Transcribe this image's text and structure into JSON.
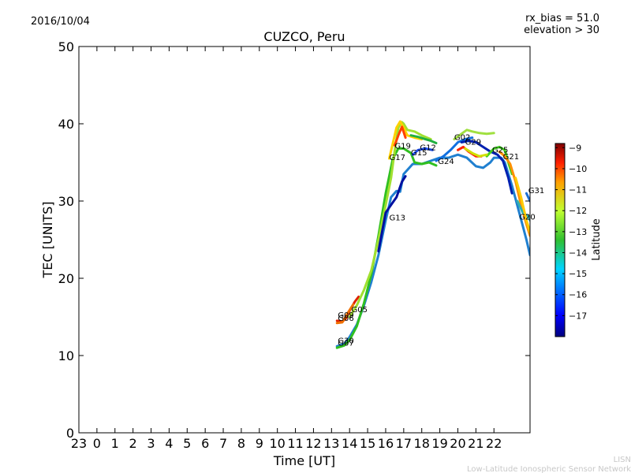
{
  "header": {
    "date": "2016/10/04",
    "bias": "rx_bias = 51.0",
    "elevation": "elevation > 30"
  },
  "footer": {
    "line1": "LISN",
    "line2": "Low-Latitude Ionospheric Sensor Network"
  },
  "chart_data": {
    "type": "line",
    "title": "CUZCO, Peru",
    "xlabel": "Time [UT]",
    "ylabel": "TEC [UNITS]",
    "xlim": [
      -1,
      24
    ],
    "ylim": [
      0,
      50
    ],
    "yticks": [
      0,
      10,
      20,
      30,
      40,
      50
    ],
    "xticks": [
      {
        "v": -1,
        "label": "23"
      },
      {
        "v": 0,
        "label": "0"
      },
      {
        "v": 1,
        "label": "1"
      },
      {
        "v": 2,
        "label": "2"
      },
      {
        "v": 3,
        "label": "3"
      },
      {
        "v": 4,
        "label": "4"
      },
      {
        "v": 5,
        "label": "5"
      },
      {
        "v": 6,
        "label": "6"
      },
      {
        "v": 7,
        "label": "7"
      },
      {
        "v": 8,
        "label": "8"
      },
      {
        "v": 9,
        "label": "9"
      },
      {
        "v": 10,
        "label": "10"
      },
      {
        "v": 11,
        "label": "11"
      },
      {
        "v": 12,
        "label": "12"
      },
      {
        "v": 13,
        "label": "13"
      },
      {
        "v": 14,
        "label": "14"
      },
      {
        "v": 15,
        "label": "15"
      },
      {
        "v": 16,
        "label": "16"
      },
      {
        "v": 17,
        "label": "17"
      },
      {
        "v": 18,
        "label": "18"
      },
      {
        "v": 19,
        "label": "19"
      },
      {
        "v": 20,
        "label": "20"
      },
      {
        "v": 21,
        "label": "21"
      },
      {
        "v": 22,
        "label": "22"
      }
    ],
    "colorbar": {
      "label": "Latitude",
      "range": [
        -18,
        -8.8
      ],
      "ticks": [
        -9,
        -10,
        -11,
        -12,
        -13,
        -14,
        -15,
        -16,
        -17
      ]
    },
    "series": [
      {
        "name": "G30",
        "color": "#2080d0",
        "points": [
          [
            13.3,
            11.2
          ],
          [
            13.7,
            11.5
          ],
          [
            14.0,
            12.4
          ],
          [
            14.4,
            14.0
          ],
          [
            14.8,
            16.5
          ],
          [
            15.2,
            19.5
          ],
          [
            15.6,
            23.0
          ],
          [
            16.0,
            27.5
          ],
          [
            16.3,
            30.5
          ],
          [
            16.6,
            31.3
          ],
          [
            16.8,
            31.2
          ],
          [
            17.0,
            33.5
          ],
          [
            17.5,
            34.8
          ],
          [
            18.0,
            34.8
          ],
          [
            18.5,
            35.2
          ],
          [
            19.0,
            35.6
          ],
          [
            19.5,
            35.6
          ],
          [
            20.0,
            36.0
          ],
          [
            20.5,
            35.6
          ],
          [
            21.0,
            34.5
          ],
          [
            21.4,
            34.3
          ],
          [
            21.8,
            35.0
          ],
          [
            22.0,
            35.6
          ],
          [
            22.4,
            35.6
          ],
          [
            22.6,
            35.0
          ],
          [
            23.0,
            32.0
          ],
          [
            23.4,
            28.5
          ],
          [
            23.8,
            25.0
          ],
          [
            24.0,
            23.0
          ]
        ]
      },
      {
        "name": "G07",
        "color": "#30c020",
        "points": [
          [
            13.3,
            11.0
          ],
          [
            13.7,
            11.3
          ],
          [
            14.0,
            12.0
          ],
          [
            14.4,
            13.8
          ],
          [
            14.8,
            16.8
          ],
          [
            15.2,
            20.5
          ],
          [
            15.6,
            25.5
          ],
          [
            16.0,
            31.0
          ],
          [
            16.4,
            35.5
          ],
          [
            16.7,
            36.8
          ],
          [
            17.0,
            36.8
          ],
          [
            17.4,
            36.2
          ],
          [
            17.6,
            35.0
          ],
          [
            18.0,
            34.8
          ],
          [
            18.4,
            35.0
          ],
          [
            18.8,
            34.6
          ]
        ]
      },
      {
        "name": "G09",
        "color": "#e02000",
        "points": [
          [
            13.3,
            14.5
          ],
          [
            13.6,
            14.4
          ],
          [
            13.8,
            14.8
          ],
          [
            14.0,
            15.8
          ],
          [
            14.3,
            17.0
          ],
          [
            14.5,
            17.6
          ]
        ]
      },
      {
        "name": "G06",
        "color": "#f07000",
        "points": [
          [
            13.3,
            14.2
          ],
          [
            13.6,
            14.3
          ],
          [
            13.9,
            15.5
          ],
          [
            14.2,
            16.6
          ]
        ]
      },
      {
        "name": "G05",
        "color": "#a0e030",
        "points": [
          [
            14.0,
            15.0
          ],
          [
            14.4,
            16.5
          ],
          [
            14.8,
            18.5
          ],
          [
            15.2,
            21.0
          ],
          [
            15.6,
            25.0
          ],
          [
            16.0,
            29.5
          ],
          [
            16.3,
            33.0
          ],
          [
            16.5,
            36.5
          ],
          [
            16.7,
            39.5
          ],
          [
            16.9,
            40.2
          ],
          [
            17.0,
            40.0
          ],
          [
            17.2,
            39.2
          ],
          [
            17.6,
            39.0
          ],
          [
            18.0,
            38.5
          ],
          [
            18.5,
            38.0
          ]
        ]
      },
      {
        "name": "G17",
        "color": "#ffd000",
        "points": [
          [
            16.2,
            35.5
          ],
          [
            16.4,
            37.5
          ],
          [
            16.6,
            39.5
          ],
          [
            16.8,
            40.3
          ],
          [
            17.0,
            39.5
          ],
          [
            17.2,
            38.5
          ],
          [
            17.6,
            38.2
          ],
          [
            18.0,
            38.0
          ]
        ]
      },
      {
        "name": "G19",
        "color": "#ff4000",
        "points": [
          [
            16.5,
            37.2
          ],
          [
            16.7,
            38.5
          ],
          [
            16.9,
            39.6
          ],
          [
            17.1,
            38.2
          ]
        ]
      },
      {
        "name": "G13",
        "color": "#0010a0",
        "points": [
          [
            15.6,
            23.5
          ],
          [
            15.8,
            26.0
          ],
          [
            16.0,
            28.5
          ],
          [
            16.3,
            29.5
          ],
          [
            16.6,
            30.5
          ],
          [
            16.9,
            32.5
          ],
          [
            17.1,
            33.2
          ]
        ]
      },
      {
        "name": "G15",
        "color": "#2050f0",
        "points": [
          [
            17.5,
            36.0
          ],
          [
            17.8,
            36.6
          ],
          [
            18.2,
            36.8
          ],
          [
            18.6,
            36.6
          ]
        ]
      },
      {
        "name": "G12",
        "color": "#20b040",
        "points": [
          [
            17.4,
            38.5
          ],
          [
            17.8,
            38.3
          ],
          [
            18.2,
            38.0
          ],
          [
            18.5,
            37.8
          ],
          [
            18.8,
            37.5
          ]
        ]
      },
      {
        "name": "G24",
        "color": "#1070e0",
        "points": [
          [
            18.8,
            35.2
          ],
          [
            19.2,
            35.8
          ],
          [
            19.6,
            36.6
          ],
          [
            20.0,
            37.6
          ],
          [
            20.4,
            38.0
          ],
          [
            20.8,
            38.2
          ]
        ]
      },
      {
        "name": "G02",
        "color": "#a0e040",
        "points": [
          [
            19.8,
            38.0
          ],
          [
            20.2,
            38.7
          ],
          [
            20.5,
            39.2
          ],
          [
            20.8,
            39.0
          ],
          [
            21.2,
            38.8
          ],
          [
            21.6,
            38.7
          ],
          [
            22.0,
            38.8
          ]
        ]
      },
      {
        "name": "G29",
        "color": "#0020b0",
        "points": [
          [
            20.2,
            37.6
          ],
          [
            20.6,
            37.8
          ],
          [
            21.0,
            37.6
          ],
          [
            21.4,
            37.0
          ],
          [
            21.8,
            36.4
          ],
          [
            22.2,
            36.0
          ],
          [
            22.5,
            35.2
          ],
          [
            22.8,
            33.0
          ],
          [
            23.0,
            31.0
          ]
        ]
      },
      {
        "name": "G25",
        "color": "#40d020",
        "points": [
          [
            21.6,
            35.8
          ],
          [
            22.0,
            36.8
          ],
          [
            22.3,
            37.0
          ],
          [
            22.6,
            36.6
          ],
          [
            22.8,
            35.0
          ],
          [
            23.0,
            33.5
          ]
        ]
      },
      {
        "name": "G21",
        "color": "#ff9000",
        "points": [
          [
            22.3,
            36.4
          ],
          [
            22.6,
            35.8
          ],
          [
            22.9,
            34.8
          ],
          [
            23.2,
            32.5
          ],
          [
            23.5,
            29.5
          ],
          [
            23.8,
            27.0
          ],
          [
            24.0,
            25.5
          ]
        ]
      },
      {
        "name": "G31",
        "color": "#2070d0",
        "points": [
          [
            23.8,
            31.0
          ],
          [
            24.0,
            30.0
          ]
        ]
      },
      {
        "name": "G20",
        "color": "#30b0b0",
        "points": [
          [
            23.3,
            30.0
          ],
          [
            23.6,
            28.5
          ],
          [
            23.9,
            28.0
          ],
          [
            24.0,
            27.5
          ]
        ]
      }
    ],
    "extra_traces": [
      {
        "color": "#ff2000",
        "points": [
          [
            20.0,
            36.6
          ],
          [
            20.3,
            37.0
          ],
          [
            20.6,
            36.4
          ],
          [
            21.0,
            35.8
          ],
          [
            21.3,
            35.8
          ]
        ]
      },
      {
        "color": "#d0e000",
        "points": [
          [
            20.4,
            36.8
          ],
          [
            20.8,
            36.2
          ],
          [
            21.2,
            35.8
          ],
          [
            21.6,
            36.0
          ]
        ]
      },
      {
        "color": "#ffcc00",
        "points": [
          [
            23.2,
            33.0
          ],
          [
            23.5,
            30.5
          ],
          [
            23.8,
            27.5
          ],
          [
            24.0,
            26.0
          ]
        ]
      }
    ],
    "labels": [
      {
        "text": "G09",
        "x": 13.35,
        "y": 14.9
      },
      {
        "text": "G06",
        "x": 13.35,
        "y": 14.5
      },
      {
        "text": "G05",
        "x": 14.1,
        "y": 15.6
      },
      {
        "text": "G30",
        "x": 13.35,
        "y": 11.6
      },
      {
        "text": "G07",
        "x": 13.35,
        "y": 11.3
      },
      {
        "text": "G13",
        "x": 16.2,
        "y": 27.5
      },
      {
        "text": "G17",
        "x": 16.2,
        "y": 35.3
      },
      {
        "text": "G19",
        "x": 16.5,
        "y": 36.8
      },
      {
        "text": "G15",
        "x": 17.4,
        "y": 35.9
      },
      {
        "text": "G12",
        "x": 17.9,
        "y": 36.6
      },
      {
        "text": "G24",
        "x": 18.9,
        "y": 34.8
      },
      {
        "text": "G02",
        "x": 19.8,
        "y": 37.9
      },
      {
        "text": "G29",
        "x": 20.4,
        "y": 37.3
      },
      {
        "text": "G25",
        "x": 21.9,
        "y": 36.3
      },
      {
        "text": "G21",
        "x": 22.5,
        "y": 35.4
      },
      {
        "text": "G31",
        "x": 23.9,
        "y": 31.0
      },
      {
        "text": "G20",
        "x": 23.4,
        "y": 27.6
      }
    ]
  }
}
